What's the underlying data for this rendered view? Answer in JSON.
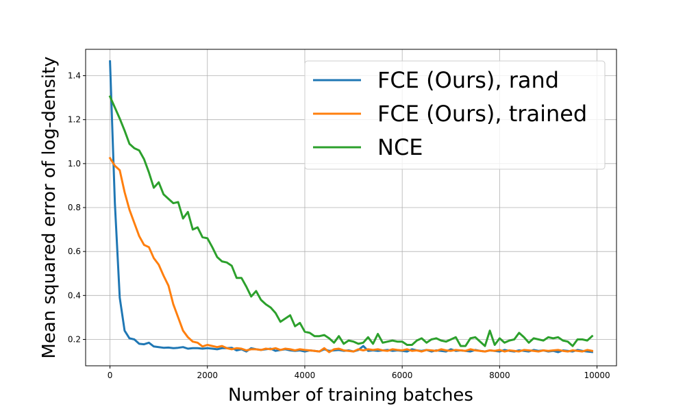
{
  "chart_data": {
    "type": "line",
    "title": "",
    "xlabel": "Number of training batches",
    "ylabel": "Mean squared error of log-density",
    "xlim": [
      -500,
      10400
    ],
    "ylim": [
      0.08,
      1.52
    ],
    "xticks": [
      0,
      2000,
      4000,
      6000,
      8000,
      10000
    ],
    "yticks": [
      0.2,
      0.4,
      0.6,
      0.8,
      1.0,
      1.2,
      1.4
    ],
    "xtick_labels": [
      "0",
      "2000",
      "4000",
      "6000",
      "8000",
      "10000"
    ],
    "ytick_labels": [
      "0.2",
      "0.4",
      "0.6",
      "0.8",
      "1.0",
      "1.2",
      "1.4"
    ],
    "grid": true,
    "legend_position": "top-right",
    "x": [
      0,
      100,
      200,
      300,
      400,
      500,
      600,
      700,
      800,
      900,
      1000,
      1100,
      1200,
      1300,
      1400,
      1500,
      1600,
      1700,
      1800,
      1900,
      2000,
      2100,
      2200,
      2300,
      2400,
      2500,
      2600,
      2700,
      2800,
      2900,
      3000,
      3100,
      3200,
      3300,
      3400,
      3500,
      3600,
      3700,
      3800,
      3900,
      4000,
      4100,
      4200,
      4300,
      4400,
      4500,
      4600,
      4700,
      4800,
      4900,
      5000,
      5100,
      5200,
      5300,
      5400,
      5500,
      5600,
      5700,
      5800,
      5900,
      6000,
      6100,
      6200,
      6300,
      6400,
      6500,
      6600,
      6700,
      6800,
      6900,
      7000,
      7100,
      7200,
      7300,
      7400,
      7500,
      7600,
      7700,
      7800,
      7900,
      8000,
      8100,
      8200,
      8300,
      8400,
      8500,
      8600,
      8700,
      8800,
      8900,
      9000,
      9100,
      9200,
      9300,
      9400,
      9500,
      9600,
      9700,
      9800,
      9900
    ],
    "series": [
      {
        "name": "FCE (Ours), rand",
        "color": "#1f77b4",
        "values": [
          1.465,
          0.82,
          0.39,
          0.24,
          0.205,
          0.2,
          0.18,
          0.178,
          0.185,
          0.168,
          0.165,
          0.162,
          0.163,
          0.16,
          0.162,
          0.165,
          0.158,
          0.16,
          0.16,
          0.158,
          0.16,
          0.158,
          0.155,
          0.16,
          0.16,
          0.162,
          0.15,
          0.155,
          0.145,
          0.16,
          0.155,
          0.152,
          0.155,
          0.158,
          0.148,
          0.152,
          0.155,
          0.15,
          0.148,
          0.15,
          0.145,
          0.15,
          0.148,
          0.145,
          0.155,
          0.148,
          0.15,
          0.152,
          0.148,
          0.15,
          0.145,
          0.152,
          0.17,
          0.148,
          0.15,
          0.148,
          0.15,
          0.152,
          0.148,
          0.15,
          0.148,
          0.145,
          0.155,
          0.15,
          0.148,
          0.152,
          0.145,
          0.15,
          0.148,
          0.145,
          0.155,
          0.148,
          0.15,
          0.148,
          0.145,
          0.152,
          0.148,
          0.145,
          0.15,
          0.148,
          0.145,
          0.152,
          0.148,
          0.145,
          0.15,
          0.148,
          0.145,
          0.152,
          0.148,
          0.15,
          0.145,
          0.148,
          0.142,
          0.15,
          0.148,
          0.145,
          0.152,
          0.148,
          0.145,
          0.143
        ]
      },
      {
        "name": "FCE (Ours), trained",
        "color": "#ff7f0e",
        "values": [
          1.025,
          0.99,
          0.97,
          0.87,
          0.79,
          0.73,
          0.67,
          0.63,
          0.62,
          0.57,
          0.54,
          0.49,
          0.445,
          0.36,
          0.3,
          0.24,
          0.21,
          0.19,
          0.185,
          0.168,
          0.175,
          0.17,
          0.165,
          0.17,
          0.16,
          0.155,
          0.16,
          0.158,
          0.15,
          0.155,
          0.155,
          0.152,
          0.158,
          0.155,
          0.16,
          0.152,
          0.158,
          0.155,
          0.15,
          0.155,
          0.152,
          0.15,
          0.148,
          0.145,
          0.16,
          0.142,
          0.155,
          0.158,
          0.15,
          0.148,
          0.145,
          0.155,
          0.15,
          0.155,
          0.152,
          0.155,
          0.15,
          0.148,
          0.155,
          0.152,
          0.15,
          0.155,
          0.148,
          0.15,
          0.145,
          0.152,
          0.15,
          0.148,
          0.155,
          0.15,
          0.148,
          0.152,
          0.15,
          0.148,
          0.155,
          0.15,
          0.148,
          0.145,
          0.15,
          0.148,
          0.152,
          0.145,
          0.15,
          0.148,
          0.145,
          0.152,
          0.15,
          0.148,
          0.145,
          0.15,
          0.148,
          0.15,
          0.152,
          0.148,
          0.145,
          0.15,
          0.148,
          0.145,
          0.152,
          0.148
        ]
      },
      {
        "name": "NCE",
        "color": "#2ca02c",
        "values": [
          1.305,
          1.255,
          1.205,
          1.15,
          1.09,
          1.07,
          1.06,
          1.02,
          0.96,
          0.89,
          0.915,
          0.86,
          0.84,
          0.82,
          0.825,
          0.75,
          0.78,
          0.7,
          0.71,
          0.665,
          0.66,
          0.62,
          0.575,
          0.555,
          0.55,
          0.535,
          0.48,
          0.48,
          0.44,
          0.395,
          0.42,
          0.38,
          0.36,
          0.345,
          0.32,
          0.28,
          0.295,
          0.31,
          0.26,
          0.275,
          0.235,
          0.23,
          0.215,
          0.215,
          0.22,
          0.205,
          0.185,
          0.215,
          0.18,
          0.195,
          0.19,
          0.18,
          0.185,
          0.21,
          0.18,
          0.225,
          0.185,
          0.19,
          0.195,
          0.19,
          0.19,
          0.175,
          0.175,
          0.195,
          0.205,
          0.185,
          0.2,
          0.205,
          0.195,
          0.19,
          0.2,
          0.21,
          0.17,
          0.17,
          0.205,
          0.21,
          0.19,
          0.17,
          0.24,
          0.175,
          0.205,
          0.185,
          0.195,
          0.2,
          0.23,
          0.21,
          0.185,
          0.205,
          0.2,
          0.195,
          0.21,
          0.205,
          0.21,
          0.195,
          0.19,
          0.17,
          0.2,
          0.2,
          0.195,
          0.215
        ]
      }
    ]
  }
}
